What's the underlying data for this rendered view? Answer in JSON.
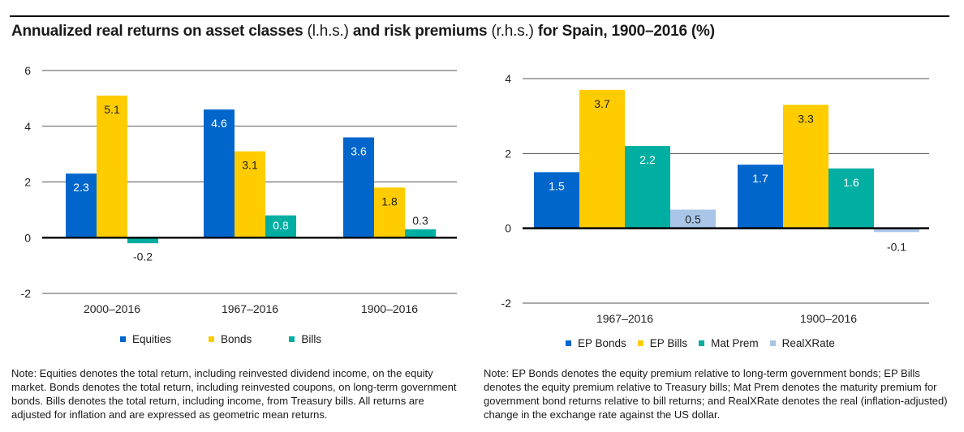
{
  "title": {
    "part1": "Annualized real returns on asset classes ",
    "part2": "(l.h.s.)",
    "part3": " and risk premiums ",
    "part4": "(r.h.s.)",
    "part5": " for Spain, 1900–2016 (%)"
  },
  "colors": {
    "blue": "#0066cc",
    "yellow": "#ffcc00",
    "teal": "#00aea2",
    "lightblue": "#a9c6e8"
  },
  "chart_data": [
    {
      "type": "bar",
      "title": "Annualized real returns on asset classes (l.h.s.)",
      "xlabel": "",
      "ylabel": "",
      "ylim": [
        -2,
        6
      ],
      "yticks": [
        6,
        4,
        2,
        0,
        -2
      ],
      "ytick_labels": [
        "6",
        "4",
        "2",
        "0",
        "-2"
      ],
      "grid": true,
      "legend_position": "bottom",
      "categories": [
        "2000–2016",
        "1967–2016",
        "1900–2016"
      ],
      "series": [
        {
          "name": "Equities",
          "color": "#0066cc",
          "label_color": "#ffffff",
          "values": [
            2.3,
            4.6,
            3.6
          ],
          "labels": [
            "2.3",
            "4.6",
            "3.6"
          ]
        },
        {
          "name": "Bonds",
          "color": "#ffcc00",
          "label_color": "#222222",
          "values": [
            5.1,
            3.1,
            1.8
          ],
          "labels": [
            "5.1",
            "3.1",
            "1.8"
          ]
        },
        {
          "name": "Bills",
          "color": "#00aea2",
          "label_color": "#ffffff",
          "values": [
            -0.2,
            0.8,
            0.3
          ],
          "labels": [
            "-0.2",
            "0.8",
            "0.3"
          ]
        }
      ]
    },
    {
      "type": "bar",
      "title": "Risk premiums (r.h.s.)",
      "xlabel": "",
      "ylabel": "",
      "ylim": [
        -2,
        4
      ],
      "yticks": [
        4,
        2,
        0,
        -2
      ],
      "ytick_labels": [
        "4",
        "2",
        "0",
        "-2"
      ],
      "grid": true,
      "legend_position": "bottom",
      "categories": [
        "1967–2016",
        "1900–2016"
      ],
      "series": [
        {
          "name": "EP Bonds",
          "color": "#0066cc",
          "label_color": "#ffffff",
          "values": [
            1.5,
            1.7
          ],
          "labels": [
            "1.5",
            "1.7"
          ]
        },
        {
          "name": "EP Bills",
          "color": "#ffcc00",
          "label_color": "#222222",
          "values": [
            3.7,
            3.3
          ],
          "labels": [
            "3.7",
            "3.3"
          ]
        },
        {
          "name": "Mat Prem",
          "color": "#00aea2",
          "label_color": "#ffffff",
          "values": [
            2.2,
            1.6
          ],
          "labels": [
            "2.2",
            "1.6"
          ]
        },
        {
          "name": "RealXRate",
          "color": "#a9c6e8",
          "label_color": "#222222",
          "values": [
            0.5,
            -0.1
          ],
          "labels": [
            "0.5",
            "-0.1"
          ]
        }
      ]
    }
  ],
  "notes": {
    "left": "Note: Equities denotes the total return, including reinvested dividend income, on the equity market. Bonds denotes the total return, including reinvested coupons, on long-term government bonds. Bills denotes the total return, including income, from Treasury bills. All returns are adjusted for inflation and are expressed as geometric mean returns.",
    "right": "Note: EP Bonds denotes the equity premium relative to long-term government bonds; EP Bills denotes the equity premium relative to Treasury bills; Mat Prem denotes the maturity premium for government bond returns relative to bill returns; and RealXRate denotes the real (inflation-adjusted) change in the exchange rate against the US dollar."
  }
}
